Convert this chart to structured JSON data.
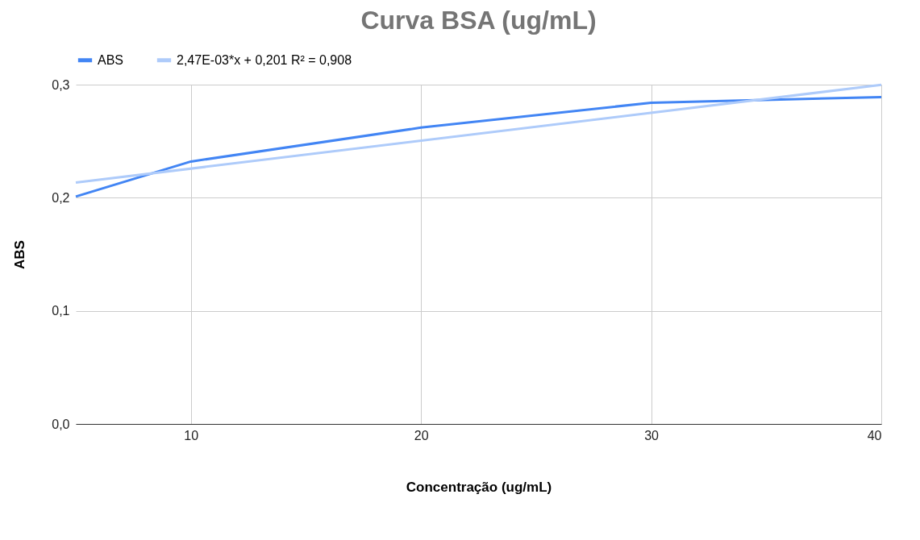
{
  "chart_data": {
    "type": "line",
    "title": "Curva BSA (ug/mL)",
    "xlabel": "Concentração (ug/mL)",
    "ylabel": "ABS",
    "x": [
      5,
      10,
      20,
      30,
      40
    ],
    "series": [
      {
        "name": "ABS",
        "color": "#4285f4",
        "values": [
          0.201,
          0.232,
          0.262,
          0.284,
          0.289
        ]
      },
      {
        "name": "2,47E-03*x + 0,201 R² = 0,908",
        "color": "#aecbfa",
        "type": "line",
        "x": [
          5,
          40
        ],
        "values": [
          0.2134,
          0.2998
        ]
      }
    ],
    "xlim": [
      5,
      40
    ],
    "xticks": [
      10,
      20,
      30,
      40
    ],
    "ylim": [
      0,
      0.3
    ],
    "yticks": [
      {
        "value": 0,
        "label": "0,0"
      },
      {
        "value": 0.1,
        "label": "0,1"
      },
      {
        "value": 0.2,
        "label": "0,2"
      },
      {
        "value": 0.3,
        "label": "0,3"
      }
    ],
    "grid": true,
    "legend": "top"
  }
}
